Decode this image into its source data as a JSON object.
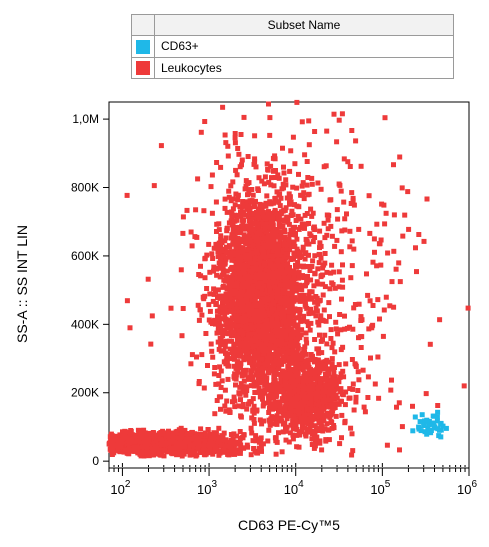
{
  "legend": {
    "header": "Subset Name",
    "entries": [
      {
        "label": "CD63+",
        "color": "#1fb8e8"
      },
      {
        "label": "Leukocytes",
        "color": "#ee3a3a"
      }
    ]
  },
  "chart_data": {
    "type": "scatter",
    "xlabel": "CD63 PE-Cy™5",
    "ylabel": "SS-A :: SS INT LIN",
    "xscale": "log",
    "xlim": [
      70,
      1000000
    ],
    "ylim": [
      -20000,
      1050000
    ],
    "x_ticks": [
      {
        "value": 100,
        "exp": "2"
      },
      {
        "value": 1000,
        "exp": "3"
      },
      {
        "value": 10000,
        "exp": "4"
      },
      {
        "value": 100000,
        "exp": "5"
      },
      {
        "value": 1000000,
        "exp": "6"
      }
    ],
    "x_tick_base": "10",
    "y_ticks": [
      {
        "value": 0,
        "label": "0"
      },
      {
        "value": 200000,
        "label": "200K"
      },
      {
        "value": 400000,
        "label": "400K"
      },
      {
        "value": 600000,
        "label": "600K"
      },
      {
        "value": 800000,
        "label": "800K"
      },
      {
        "value": 1000000,
        "label": "1,0M"
      }
    ],
    "series": [
      {
        "name": "Leukocytes",
        "color": "#ee3a3a",
        "clusters": [
          {
            "x_center": 4000,
            "x_spread_decades": 0.25,
            "y_center": 480000,
            "y_spread": 140000,
            "count": 2600
          },
          {
            "x_center": 13000,
            "x_spread_decades": 0.2,
            "y_center": 190000,
            "y_spread": 55000,
            "count": 900
          },
          {
            "x_center": 300,
            "x_spread_decades": 0.45,
            "y_center": 50000,
            "y_spread": 18000,
            "count": 1200
          },
          {
            "x_center": 6000,
            "x_spread_decades": 0.55,
            "y_center": 550000,
            "y_spread": 240000,
            "count": 450
          },
          {
            "x_center": 30000,
            "x_spread_decades": 0.6,
            "y_center": 420000,
            "y_spread": 260000,
            "count": 220
          }
        ]
      },
      {
        "name": "CD63+",
        "color": "#1fb8e8",
        "clusters": [
          {
            "x_center": 380000,
            "x_spread_decades": 0.09,
            "y_center": 100000,
            "y_spread": 20000,
            "count": 40
          }
        ]
      }
    ]
  }
}
